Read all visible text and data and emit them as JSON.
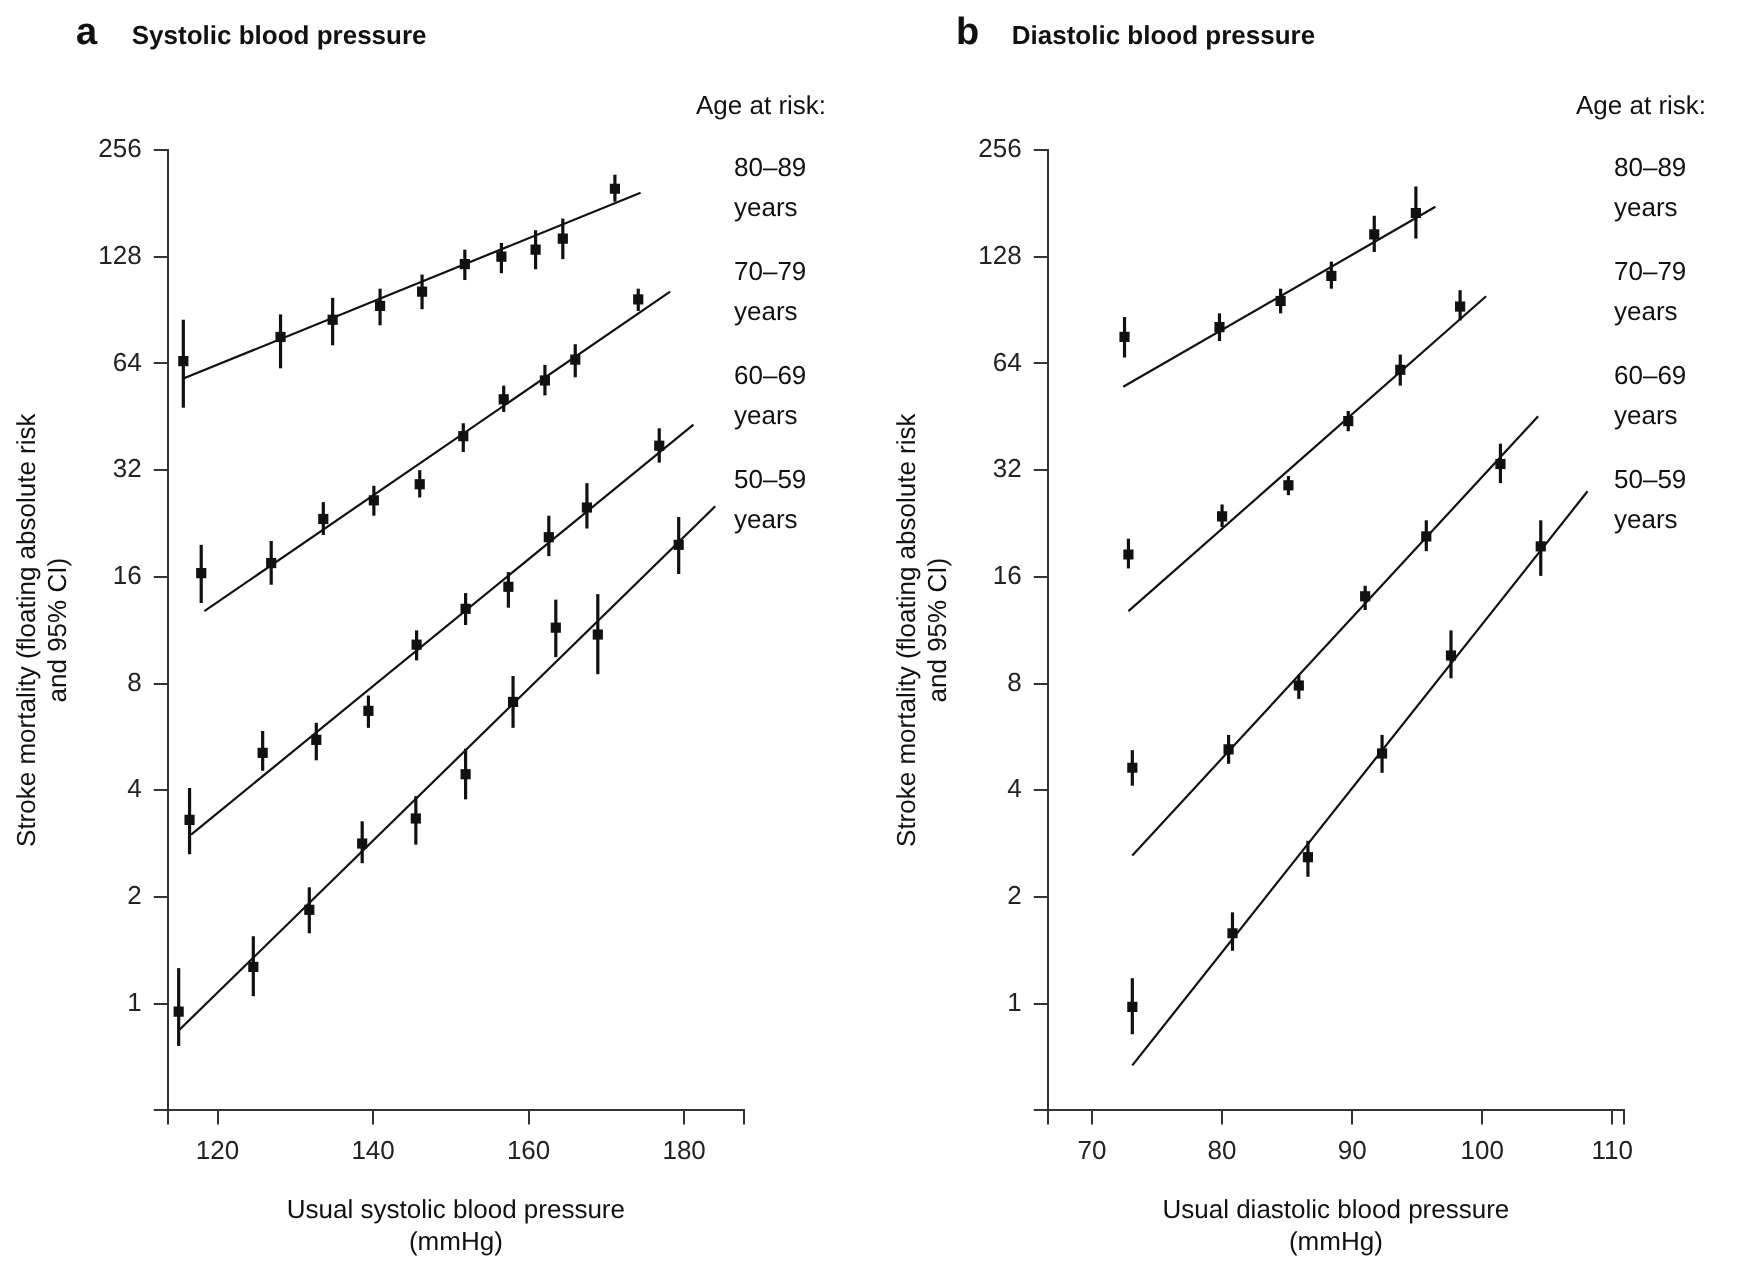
{
  "chart_data": [
    {
      "type": "scatter",
      "title": "Systolic blood pressure",
      "annotations": [
        "a"
      ],
      "xlabel": "Usual systolic blood pressure (mmHg)",
      "ylabel": "Stroke mortality (floating absolute risk and 95% CI)",
      "legend_title": "Age at risk:",
      "legend": "top right",
      "grid": false,
      "log": "y",
      "marker": "square",
      "xlim": [
        113.6,
        187.7
      ],
      "xticks": [
        {
          "value": 113.6,
          "label": null
        },
        120,
        140,
        160,
        180,
        {
          "value": 187.7,
          "label": null
        }
      ],
      "ylim": [
        0.5,
        256
      ],
      "yticks": [
        {
          "value": 0.5,
          "label": null
        },
        1,
        2,
        4,
        8,
        16,
        32,
        64,
        128,
        256
      ],
      "series": [
        {
          "name": "80–89 years",
          "color": "#111111",
          "x": [
            115.6,
            128.1,
            134.8,
            140.9,
            146.3,
            151.8,
            156.5,
            160.9,
            164.4,
            171.1
          ],
          "values": [
            65,
            76,
            85,
            93,
            102,
            122,
            128,
            134,
            144,
            199
          ],
          "errors": [
            [
              48,
              85
            ],
            [
              62,
              88
            ],
            [
              72,
              98
            ],
            [
              82,
              104
            ],
            [
              91,
              114
            ],
            [
              110,
              134
            ],
            [
              115,
              140
            ],
            [
              118,
              152
            ],
            [
              126,
              164
            ],
            [
              183,
              218
            ]
          ]
        },
        {
          "type": "line",
          "marker": "none",
          "line_style": "solid",
          "color": "#111111",
          "x": [
            115.6,
            174.4
          ],
          "values": [
            58,
            194
          ]
        },
        {
          "name": "70–79 years",
          "color": "#111111",
          "x": [
            117.9,
            126.9,
            133.6,
            140.1,
            146.0,
            151.6,
            156.8,
            162.1,
            166.0,
            174.1
          ],
          "values": [
            16.4,
            17.5,
            23.3,
            26.3,
            29.2,
            39.9,
            50.7,
            57.3,
            65.6,
            97
          ],
          "errors": [
            [
              13.5,
              19.7
            ],
            [
              15.2,
              20.2
            ],
            [
              21,
              26
            ],
            [
              23.8,
              28.9
            ],
            [
              26.8,
              32
            ],
            [
              36,
              43.4
            ],
            [
              46.7,
              55.4
            ],
            [
              52,
              63.4
            ],
            [
              58.5,
              72.5
            ],
            [
              90,
              104
            ]
          ]
        },
        {
          "type": "line",
          "marker": "none",
          "line_style": "solid",
          "color": "#111111",
          "x": [
            118.3,
            178.2
          ],
          "values": [
            12.8,
            102
          ]
        },
        {
          "name": "60–69 years",
          "color": "#111111",
          "x": [
            116.4,
            125.8,
            132.7,
            139.4,
            145.6,
            151.9,
            157.4,
            162.6,
            167.5,
            176.8
          ],
          "values": [
            3.3,
            5.1,
            5.55,
            6.7,
            10.3,
            13,
            15,
            20.7,
            25.1,
            37.5
          ],
          "errors": [
            [
              2.64,
              4.06
            ],
            [
              4.54,
              5.88
            ],
            [
              4.86,
              6.2
            ],
            [
              6,
              7.4
            ],
            [
              9.3,
              11.3
            ],
            [
              11.7,
              14.4
            ],
            [
              13.1,
              16.5
            ],
            [
              18.3,
              23.8
            ],
            [
              21.9,
              29.4
            ],
            [
              33.6,
              42
            ]
          ]
        },
        {
          "type": "line",
          "marker": "none",
          "line_style": "solid",
          "color": "#111111",
          "x": [
            116.6,
            181.2
          ],
          "values": [
            3.0,
            43
          ]
        },
        {
          "name": "50–59 years",
          "color": "#111111",
          "x": [
            115.0,
            124.6,
            131.8,
            138.6,
            145.5,
            151.9,
            158.0,
            163.5,
            168.9,
            179.3
          ],
          "values": [
            0.95,
            1.27,
            1.84,
            2.83,
            3.33,
            4.44,
            7.1,
            11.5,
            11,
            19.7
          ],
          "errors": [
            [
              0.76,
              1.26
            ],
            [
              1.05,
              1.55
            ],
            [
              1.58,
              2.13
            ],
            [
              2.49,
              3.27
            ],
            [
              2.81,
              3.85
            ],
            [
              3.77,
              5.24
            ],
            [
              6,
              8.4
            ],
            [
              9.5,
              13.8
            ],
            [
              8.5,
              14.3
            ],
            [
              16.3,
              23.6
            ]
          ]
        },
        {
          "type": "line",
          "marker": "none",
          "line_style": "solid",
          "color": "#111111",
          "x": [
            115.0,
            184.0
          ],
          "values": [
            0.84,
            25.3
          ]
        }
      ]
    },
    {
      "type": "scatter",
      "title": "Diastolic blood pressure",
      "annotations": [
        "b"
      ],
      "xlabel": "Usual diastolic blood pressure (mmHg)",
      "ylabel": "Stroke mortality (floating absolute risk and 95% CI)",
      "legend_title": "Age at risk:",
      "legend": "top right",
      "grid": false,
      "log": "y",
      "marker": "square",
      "xlim": [
        66.6,
        110.9
      ],
      "xticks": [
        {
          "value": 66.6,
          "label": null
        },
        70,
        80,
        90,
        100,
        110,
        {
          "value": 110.9,
          "label": null
        }
      ],
      "ylim": [
        0.5,
        256
      ],
      "yticks": [
        {
          "value": 0.5,
          "label": null
        },
        1,
        2,
        4,
        8,
        16,
        32,
        64,
        128,
        256
      ],
      "series": [
        {
          "name": "80–89 years",
          "color": "#111111",
          "x": [
            72.5,
            79.8,
            84.5,
            88.4,
            91.7,
            94.9
          ],
          "values": [
            76,
            81,
            96,
            113,
            148,
            170
          ],
          "errors": [
            [
              66.5,
              86.5
            ],
            [
              74,
              88.6
            ],
            [
              88.6,
              104
            ],
            [
              104,
              124
            ],
            [
              132,
              167
            ],
            [
              144,
              202
            ]
          ]
        },
        {
          "type": "line",
          "marker": "none",
          "line_style": "solid",
          "color": "#111111",
          "x": [
            72.4,
            96.4
          ],
          "values": [
            55,
            177
          ]
        },
        {
          "name": "70–79 years",
          "color": "#111111",
          "x": [
            72.8,
            80.0,
            85.1,
            89.7,
            93.7,
            98.3
          ],
          "values": [
            18.5,
            23.7,
            29,
            44,
            61.4,
            92.6
          ],
          "errors": [
            [
              16.9,
              20.5
            ],
            [
              22.1,
              25.6
            ],
            [
              27.2,
              30.8
            ],
            [
              41.2,
              47
            ],
            [
              55.4,
              67.8
            ],
            [
              84.6,
              103
            ]
          ]
        },
        {
          "type": "line",
          "marker": "none",
          "line_style": "solid",
          "color": "#111111",
          "x": [
            72.8,
            100.3
          ],
          "values": [
            12.8,
            99
          ]
        },
        {
          "name": "60–69 years",
          "color": "#111111",
          "x": [
            73.1,
            80.5,
            85.9,
            91.0,
            95.7,
            101.4
          ],
          "values": [
            4.63,
            5.22,
            7.9,
            14.1,
            20.8,
            33.3
          ],
          "errors": [
            [
              4.12,
              5.19
            ],
            [
              4.75,
              5.73
            ],
            [
              7.24,
              8.47
            ],
            [
              12.9,
              15.1
            ],
            [
              18.9,
              23.1
            ],
            [
              29.4,
              38
            ]
          ]
        },
        {
          "type": "line",
          "marker": "none",
          "line_style": "solid",
          "color": "#111111",
          "x": [
            73.1,
            104.3
          ],
          "values": [
            2.62,
            45.4
          ]
        },
        {
          "name": "50–59 years",
          "color": "#111111",
          "x": [
            73.1,
            80.8,
            86.6,
            92.3,
            97.6,
            104.5
          ],
          "values": [
            0.98,
            1.58,
            2.59,
            5.08,
            9.6,
            19.5
          ],
          "errors": [
            [
              0.82,
              1.18
            ],
            [
              1.41,
              1.81
            ],
            [
              2.28,
              2.88
            ],
            [
              4.48,
              5.73
            ],
            [
              8.28,
              11.3
            ],
            [
              16.1,
              23.1
            ]
          ]
        },
        {
          "type": "line",
          "marker": "none",
          "line_style": "solid",
          "color": "#111111",
          "x": [
            73.1,
            108.1
          ],
          "values": [
            0.67,
            27.9
          ]
        }
      ]
    }
  ]
}
